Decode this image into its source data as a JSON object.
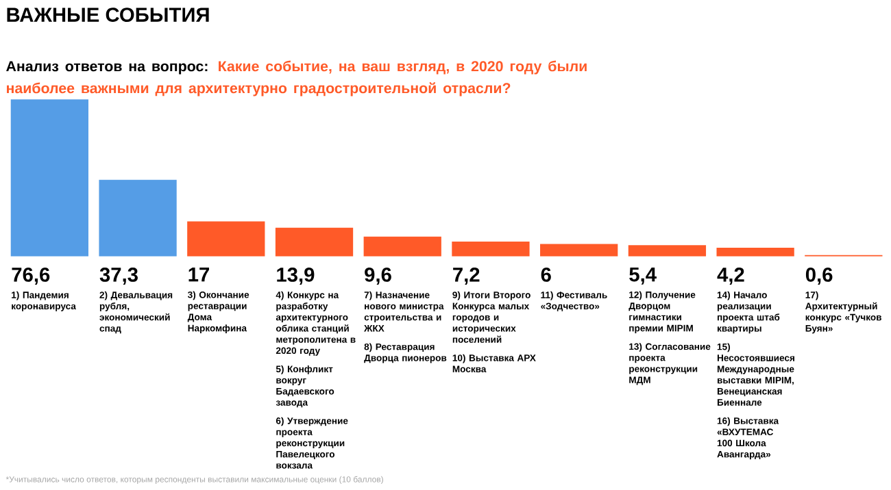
{
  "chart_data": {
    "type": "bar",
    "title": "ВАЖНЫЕ СОБЫТИЯ",
    "subtitle": "Анализ ответов на вопрос:",
    "categories": [
      "1) Пандемия коронавируса",
      "2) Девальвация рубля, экономический спад",
      "3) Окончание реставрации Дома Наркомфина",
      "4) Конкурс на разработку архитектурного облика станций метрополитена в 2020 году",
      "7) Назначение нового министра строительства и ЖКХ",
      "9) Итоги Второго Конкурса малых городов и исторических поселений",
      "11) Фестиваль «Зодчество»",
      "12) Получение Дворцом гимнастики премии MIPIM",
      "14) Начало реализации проекта штаб квартиры",
      "17) Архитектурный конкурс «Тучков Буян»"
    ],
    "values": [
      76.6,
      37.3,
      17,
      13.9,
      9.6,
      7.2,
      6,
      5.4,
      4.2,
      0.6
    ],
    "value_labels": [
      "76,6",
      "37,3",
      "17",
      "13,9",
      "9,6",
      "7,2",
      "6",
      "5,4",
      "4,2",
      "0,6"
    ],
    "colors": [
      "#559de6",
      "#559de6",
      "#ff5a28",
      "#ff5a28",
      "#ff5a28",
      "#ff5a28",
      "#ff5a28",
      "#ff5a28",
      "#ff5a28",
      "#ff5a28"
    ],
    "annotations": [
      "Какие событие, на ваш взгляд, в 2020 году были наиболее важными для архитектурно градостроительной отрасли?",
      "5) Конфликт вокруг Бадаевского завода",
      "6) Утверждение проекта реконструкции Павелецкого вокзала",
      "8) Реставрация Дворца пионеров",
      "10) Выставка АРХ Москва",
      "13) Согласование проекта реконструкции МДМ",
      "15) Несостоявшиеся Международные выставки MIPIM, Венецианская Биеннале",
      "16) Выставка «ВХУТЕМАС 100 Школа Авангарда»",
      "*Учитывались число ответов, которым респонденты выставили максимальные оценки (10 баллов)"
    ]
  }
}
